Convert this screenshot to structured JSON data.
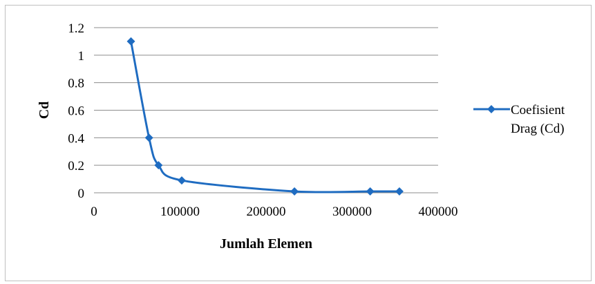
{
  "chart_data": {
    "type": "line",
    "title": "",
    "xlabel": "Jumlah Elemen",
    "ylabel": "Cd",
    "xlim": [
      0,
      400000
    ],
    "ylim": [
      0,
      1.2
    ],
    "x_ticks": [
      "0",
      "100000",
      "200000",
      "300000",
      "400000"
    ],
    "y_ticks": [
      "0",
      "0.2",
      "0.4",
      "0.6",
      "0.8",
      "1",
      "1.2"
    ],
    "grid": true,
    "legend_position": "right",
    "smoothed": true,
    "series": [
      {
        "name": "Coefisient Drag (Cd)",
        "legend_lines": [
          "Coefisient",
          "Drag (Cd)"
        ],
        "color": "#1f6cc1",
        "marker": "diamond",
        "x": [
          43000,
          64000,
          75000,
          102000,
          233000,
          321000,
          355000
        ],
        "y": [
          1.1,
          0.4,
          0.2,
          0.09,
          0.01,
          0.01,
          0.01
        ]
      }
    ]
  }
}
